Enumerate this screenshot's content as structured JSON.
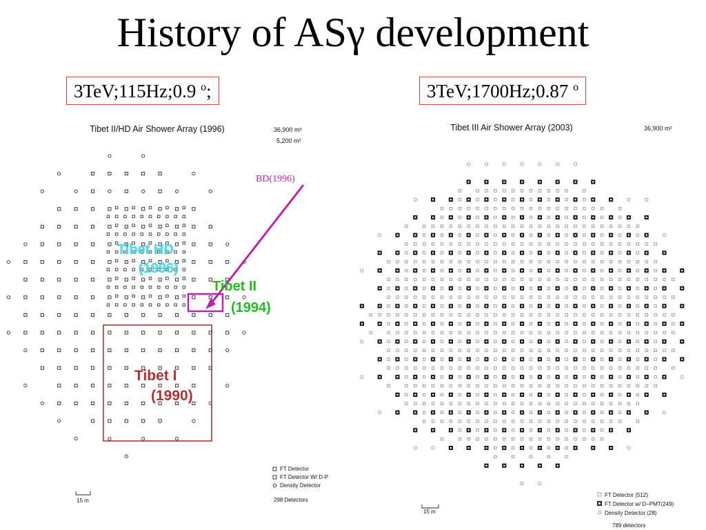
{
  "slide": {
    "title": "History of ASγ development"
  },
  "left_panel": {
    "spec_main": "3TeV;115Hz;0.9 ",
    "spec_sup": "o",
    "spec_tail": ";",
    "figure_title": "Tibet II/HD Air Shower Array (1996)",
    "area_1": "36,900 m²",
    "area_2": "5,200 m²",
    "labels": {
      "tibet_hd_name": "Tibet HD",
      "tibet_hd_year": "(1996)",
      "tibet_ii_name": "Tibet II",
      "tibet_ii_year": "(1994)",
      "tibet_i_name": "Tibet I",
      "tibet_i_year": "(1990)",
      "bd": "BD(1996)"
    },
    "legend": {
      "ft": "FT Detector",
      "ft_dpmt": "FT Detector W/ D-P",
      "density": "Density Detector"
    },
    "scale": "15 m",
    "detector_count": "298 Detectors"
  },
  "right_panel": {
    "spec_main": "3TeV;1700Hz;0.87 ",
    "spec_sup": "o",
    "figure_title": "Tibet III Air Shower Array (2003)",
    "area_1": "36,900 m²",
    "legend": {
      "ft": "FT Detector (512)",
      "ft_dpmt": "FT Detector w/ D–PMT(249)",
      "density": "Density Detector (28)"
    },
    "scale": "15 m",
    "detector_count": "789 detectors"
  },
  "colors": {
    "tibet_hd": "#33ccdd",
    "tibet_ii": "#22bb22",
    "tibet_i": "#b03030",
    "bd_arrow": "#bb22aa",
    "spec_border": "#d04040"
  }
}
